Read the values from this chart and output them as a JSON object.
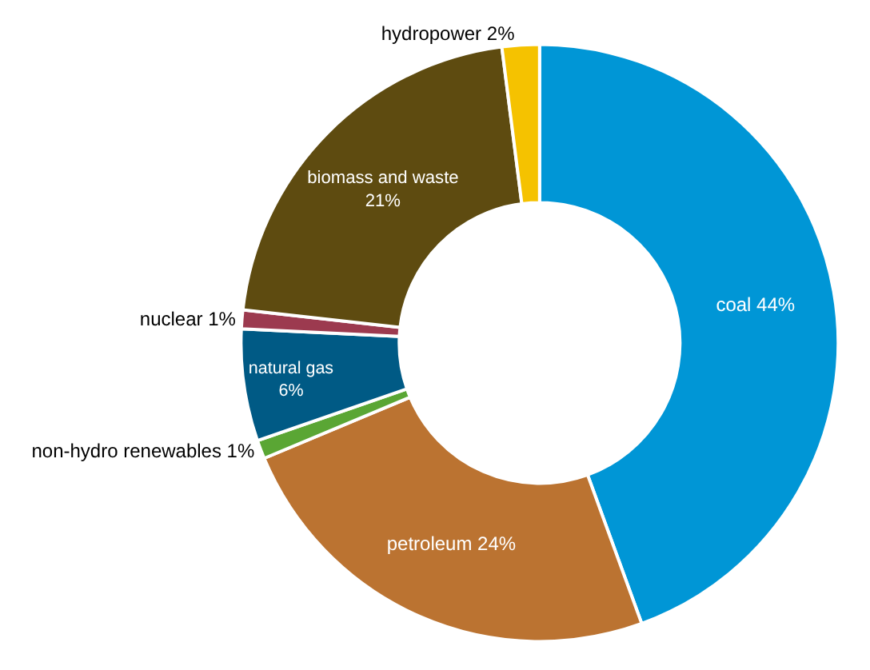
{
  "chart_data": {
    "type": "donut",
    "categories": [
      "coal",
      "petroleum",
      "non-hydro renewables",
      "natural gas",
      "nuclear",
      "biomass and waste",
      "hydropower"
    ],
    "values": [
      44,
      24,
      1,
      6,
      1,
      21,
      2
    ],
    "colors": [
      "#0096d6",
      "#bb7331",
      "#5aa634",
      "#005a85",
      "#9c3a4f",
      "#5e4b10",
      "#f5c200"
    ],
    "value_labels": [
      "44%",
      "24%",
      "1%",
      "6%",
      "1%",
      "21%",
      "2%"
    ],
    "legend": false
  }
}
